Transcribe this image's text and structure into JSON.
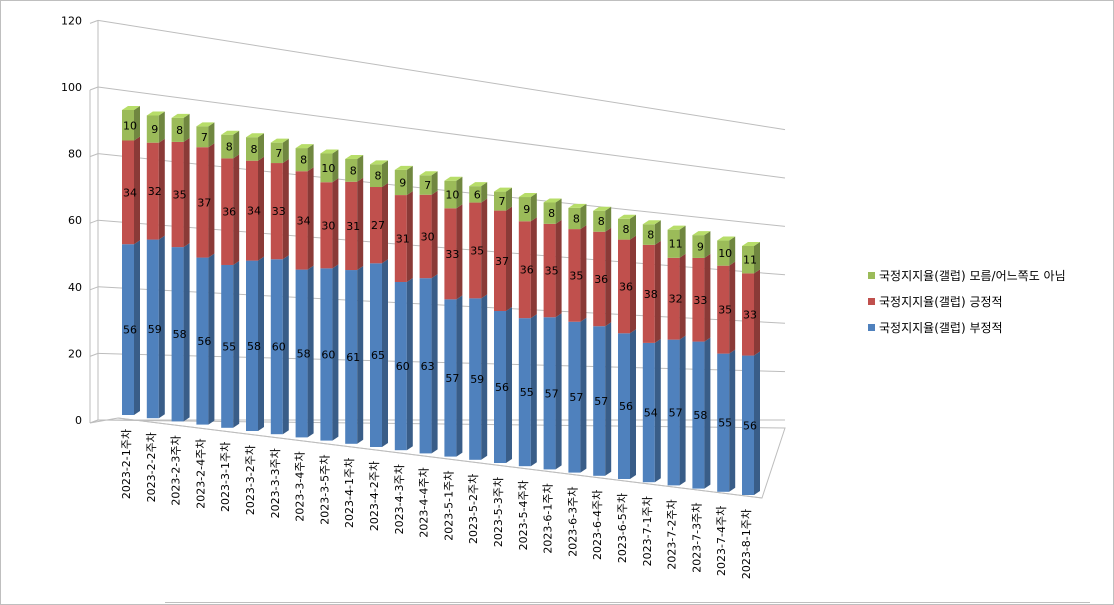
{
  "chart_data": {
    "type": "bar",
    "stacked": true,
    "three_d": true,
    "title": "",
    "xlabel": "",
    "ylabel": "",
    "ylim": [
      0,
      120
    ],
    "yticks": [
      0,
      20,
      40,
      60,
      80,
      100,
      120
    ],
    "grid": true,
    "legend_position": "right",
    "categories": [
      "2023-2-1주차",
      "2023-2-2주차",
      "2023-2-3주차",
      "2023-2-4주차",
      "2023-3-1주차",
      "2023-3-2주차",
      "2023-3-3주차",
      "2023-3-4주차",
      "2023-3-5주차",
      "2023-4-1주차",
      "2023-4-2주차",
      "2023-4-3주차",
      "2023-4-4주차",
      "2023-5-1주차",
      "2023-5-2주차",
      "2023-5-3주차",
      "2023-5-4주차",
      "2023-6-1주차",
      "2023-6-3주차",
      "2023-6-4주차",
      "2023-6-5주차",
      "2023-7-1주차",
      "2023-7-2주차",
      "2023-7-3주차",
      "2023-7-4주차",
      "2023-8-1주차"
    ],
    "series": [
      {
        "name": "국정지지율(갤럽) 부정적",
        "color": "#4f81bd",
        "values": [
          56,
          59,
          58,
          56,
          55,
          58,
          60,
          58,
          60,
          61,
          65,
          60,
          63,
          57,
          59,
          56,
          55,
          57,
          57,
          57,
          56,
          54,
          57,
          58,
          55,
          56
        ]
      },
      {
        "name": "국정지지율(갤럽) 긍정적",
        "color": "#c0504d",
        "values": [
          34,
          32,
          35,
          37,
          36,
          34,
          33,
          34,
          30,
          31,
          27,
          31,
          30,
          33,
          35,
          37,
          36,
          35,
          35,
          36,
          36,
          38,
          32,
          33,
          35,
          33
        ]
      },
      {
        "name": "국정지지율(갤럽) 모름/어느쪽도 아님",
        "color": "#9bbb59",
        "values": [
          10,
          9,
          8,
          7,
          8,
          8,
          7,
          8,
          10,
          8,
          8,
          9,
          7,
          10,
          6,
          7,
          9,
          8,
          8,
          8,
          8,
          8,
          11,
          9,
          10,
          11
        ]
      }
    ]
  }
}
